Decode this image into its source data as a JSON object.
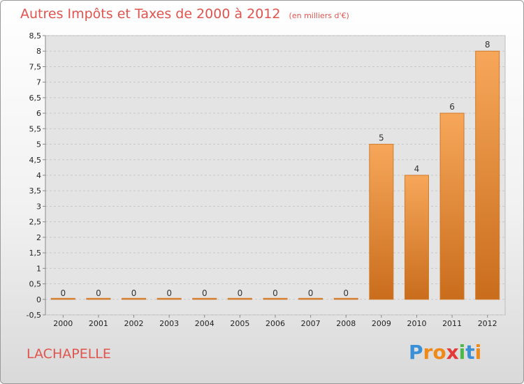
{
  "header": {
    "title": "Autres Impôts et Taxes de 2000 à 2012",
    "unit": "(en milliers d'€)"
  },
  "commune": "LACHAPELLE",
  "brand": {
    "letters": [
      "P",
      "r",
      "o",
      "x",
      "i",
      "t",
      "i"
    ],
    "colors": [
      "#3a8fd6",
      "#ef8a1a",
      "#ef8a1a",
      "#e43a3a",
      "#4cb848",
      "#3a8fd6",
      "#ef8a1a"
    ]
  },
  "chart_data": {
    "type": "bar",
    "categories": [
      "2000",
      "2001",
      "2002",
      "2003",
      "2004",
      "2005",
      "2006",
      "2007",
      "2008",
      "2009",
      "2010",
      "2011",
      "2012"
    ],
    "values": [
      0,
      0,
      0,
      0,
      0,
      0,
      0,
      0,
      0,
      5,
      4,
      6,
      8
    ],
    "labels": [
      "0",
      "0",
      "0",
      "0",
      "0",
      "0",
      "0",
      "0",
      "0",
      "5",
      "4",
      "6",
      "8"
    ],
    "ylim": [
      -0.5,
      8.5
    ],
    "yticks": [
      "-0,5",
      "0",
      "0,5",
      "1",
      "1,5",
      "2",
      "2,5",
      "3",
      "3,5",
      "4",
      "4,5",
      "5",
      "5,5",
      "6",
      "6,5",
      "7",
      "7,5",
      "8",
      "8,5"
    ],
    "grid": true,
    "bar_color": "#f08f3a"
  }
}
